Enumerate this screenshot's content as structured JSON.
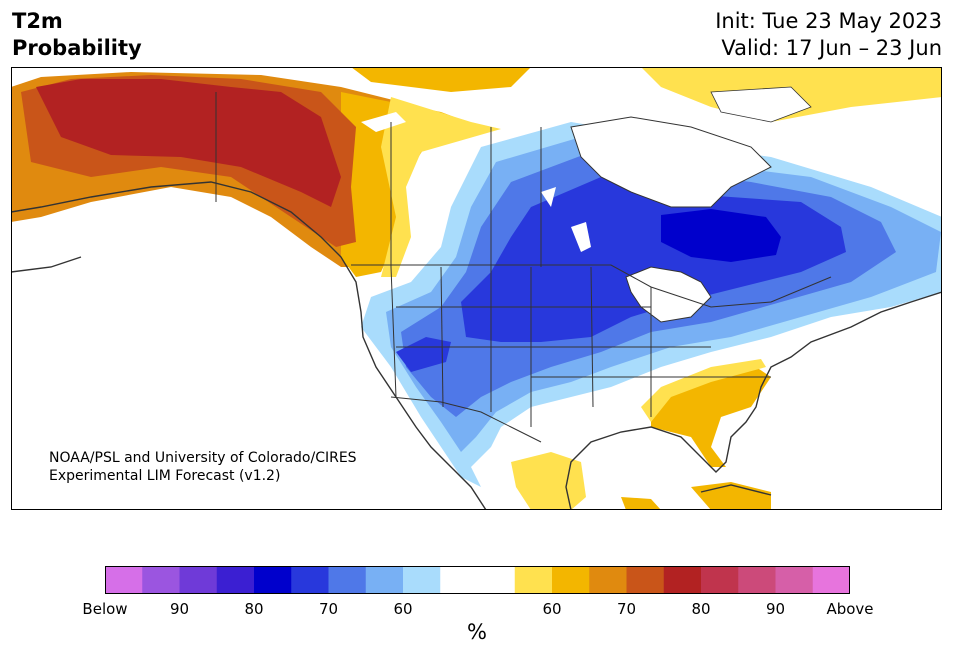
{
  "header": {
    "title_line1": "T2m",
    "title_line2": "Probability",
    "init": "Init: Tue 23 May 2023",
    "valid": "Valid: 17 Jun – 23 Jun"
  },
  "credit": {
    "line1": "NOAA/PSL and University of Colorado/CIRES",
    "line2": "Experimental LIM Forecast (v1.2)"
  },
  "colorbar": {
    "units": "%",
    "colors": [
      "#d66fe8",
      "#9b55e0",
      "#6f3ad8",
      "#3b1fd2",
      "#0000cc",
      "#2838dc",
      "#4f78e8",
      "#78b0f4",
      "#a9dcfc",
      "#ffffff",
      "#ffffff",
      "#ffe14f",
      "#f3b600",
      "#e08a0f",
      "#c95519",
      "#b22222",
      "#c0344d",
      "#cc4a7a",
      "#d65fa8",
      "#e774dd"
    ],
    "ticks": [
      {
        "label": "Below",
        "index": 0
      },
      {
        "label": "90",
        "index": 2
      },
      {
        "label": "80",
        "index": 4
      },
      {
        "label": "70",
        "index": 6
      },
      {
        "label": "60",
        "index": 8
      },
      {
        "label": "60",
        "index": 12
      },
      {
        "label": "70",
        "index": 14
      },
      {
        "label": "80",
        "index": 16
      },
      {
        "label": "90",
        "index": 18
      },
      {
        "label": "Above",
        "index": 20
      }
    ]
  },
  "map": {
    "colors": {
      "land": "#ffffff",
      "border": "#333333",
      "blue1": "#a9dcfc",
      "blue2": "#78b0f4",
      "blue3": "#4f78e8",
      "blue4": "#2838dc",
      "blue5": "#0000cc",
      "warm1": "#ffe14f",
      "warm2": "#f3b600",
      "warm3": "#e08a0f",
      "warm4": "#c95519",
      "warm5": "#b22222"
    }
  }
}
